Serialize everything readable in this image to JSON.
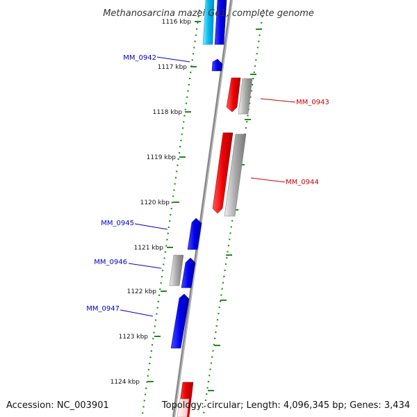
{
  "title": "Methanosarcina mazei Go1, complete genome",
  "footer": {
    "accession": "Accession: NC_003901",
    "summary": "Topology: circular; Length: 4,096,345 bp; Genes: 3,434"
  },
  "colors": {
    "forward_strand": "#0000ee",
    "reverse_strand": "#ee0000",
    "highlight": "#00bbee",
    "pseudo_gene": "#aaaaaa",
    "scale_dots": "#228822",
    "backbone": "#808080",
    "label_blue": "#0000cc",
    "label_red": "#cc0000"
  },
  "scale": {
    "unit": "kbp",
    "ticks": [
      "1116 kbp",
      "1117 kbp",
      "1118 kbp",
      "1119 kbp",
      "1120 kbp",
      "1121 kbp",
      "1122 kbp",
      "1123 kbp",
      "1124 kbp"
    ]
  },
  "labeled_genes": [
    {
      "name": "MM_0942",
      "strand": "forward"
    },
    {
      "name": "MM_0943",
      "strand": "reverse"
    },
    {
      "name": "MM_0944",
      "strand": "reverse"
    },
    {
      "name": "MM_0945",
      "strand": "forward"
    },
    {
      "name": "MM_0946",
      "strand": "forward"
    },
    {
      "name": "MM_0947",
      "strand": "forward"
    }
  ]
}
